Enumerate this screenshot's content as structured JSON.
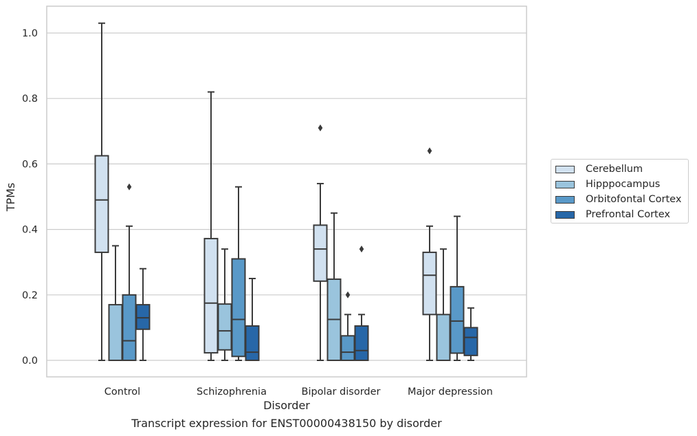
{
  "chart_data": {
    "type": "box",
    "title": "",
    "xlabel": "Disorder",
    "ylabel": "TPMs",
    "ylim": [
      -0.05,
      1.08
    ],
    "yticks": [
      0.0,
      0.2,
      0.4,
      0.6,
      0.8,
      1.0
    ],
    "ytick_labels": [
      "0.0",
      "0.2",
      "0.4",
      "0.6",
      "0.8",
      "1.0"
    ],
    "grid": "horizontal",
    "legend_position": "right",
    "categories": [
      "Control",
      "Schizophrenia",
      "Bipolar disorder",
      "Major depression"
    ],
    "series": [
      {
        "name": "Cerebellum",
        "color": "#d1e1f0",
        "boxes": [
          {
            "min": 0.0,
            "q1": 0.33,
            "median": 0.49,
            "q3": 0.625,
            "max": 1.03,
            "outliers": []
          },
          {
            "min": 0.0,
            "q1": 0.023,
            "median": 0.175,
            "q3": 0.372,
            "max": 0.82,
            "outliers": []
          },
          {
            "min": 0.0,
            "q1": 0.242,
            "median": 0.34,
            "q3": 0.413,
            "max": 0.54,
            "outliers": [
              0.71
            ]
          },
          {
            "min": 0.0,
            "q1": 0.14,
            "median": 0.26,
            "q3": 0.33,
            "max": 0.41,
            "outliers": [
              0.64
            ]
          }
        ]
      },
      {
        "name": "Hipppocampus",
        "color": "#9ac4dd",
        "boxes": [
          {
            "min": 0.0,
            "q1": 0.0,
            "median": 0.0,
            "q3": 0.17,
            "max": 0.35,
            "outliers": []
          },
          {
            "min": 0.0,
            "q1": 0.032,
            "median": 0.09,
            "q3": 0.172,
            "max": 0.34,
            "outliers": []
          },
          {
            "min": 0.0,
            "q1": 0.0,
            "median": 0.125,
            "q3": 0.248,
            "max": 0.45,
            "outliers": []
          },
          {
            "min": 0.0,
            "q1": 0.0,
            "median": 0.0,
            "q3": 0.14,
            "max": 0.34,
            "outliers": []
          }
        ]
      },
      {
        "name": "Orbitofontal Cortex",
        "color": "#5999c8",
        "boxes": [
          {
            "min": 0.0,
            "q1": 0.0,
            "median": 0.06,
            "q3": 0.2,
            "max": 0.41,
            "outliers": [
              0.53
            ]
          },
          {
            "min": 0.0,
            "q1": 0.012,
            "median": 0.125,
            "q3": 0.31,
            "max": 0.53,
            "outliers": []
          },
          {
            "min": 0.0,
            "q1": 0.0,
            "median": 0.025,
            "q3": 0.075,
            "max": 0.14,
            "outliers": [
              0.2
            ]
          },
          {
            "min": 0.0,
            "q1": 0.022,
            "median": 0.12,
            "q3": 0.225,
            "max": 0.44,
            "outliers": []
          }
        ]
      },
      {
        "name": "Prefrontal Cortex",
        "color": "#2767a8",
        "boxes": [
          {
            "min": 0.0,
            "q1": 0.095,
            "median": 0.13,
            "q3": 0.17,
            "max": 0.28,
            "outliers": []
          },
          {
            "min": 0.0,
            "q1": 0.0,
            "median": 0.025,
            "q3": 0.105,
            "max": 0.25,
            "outliers": []
          },
          {
            "min": 0.0,
            "q1": 0.0,
            "median": 0.03,
            "q3": 0.105,
            "max": 0.14,
            "outliers": [
              0.34
            ]
          },
          {
            "min": 0.0,
            "q1": 0.015,
            "median": 0.07,
            "q3": 0.1,
            "max": 0.16,
            "outliers": []
          }
        ]
      }
    ]
  },
  "caption": "Transcript expression for ENST00000438150 by disorder",
  "colors": {
    "grid": "#cccccc",
    "axes_edge": "#cccccc",
    "box_edge": "#3a3a3a",
    "text": "#262626"
  }
}
